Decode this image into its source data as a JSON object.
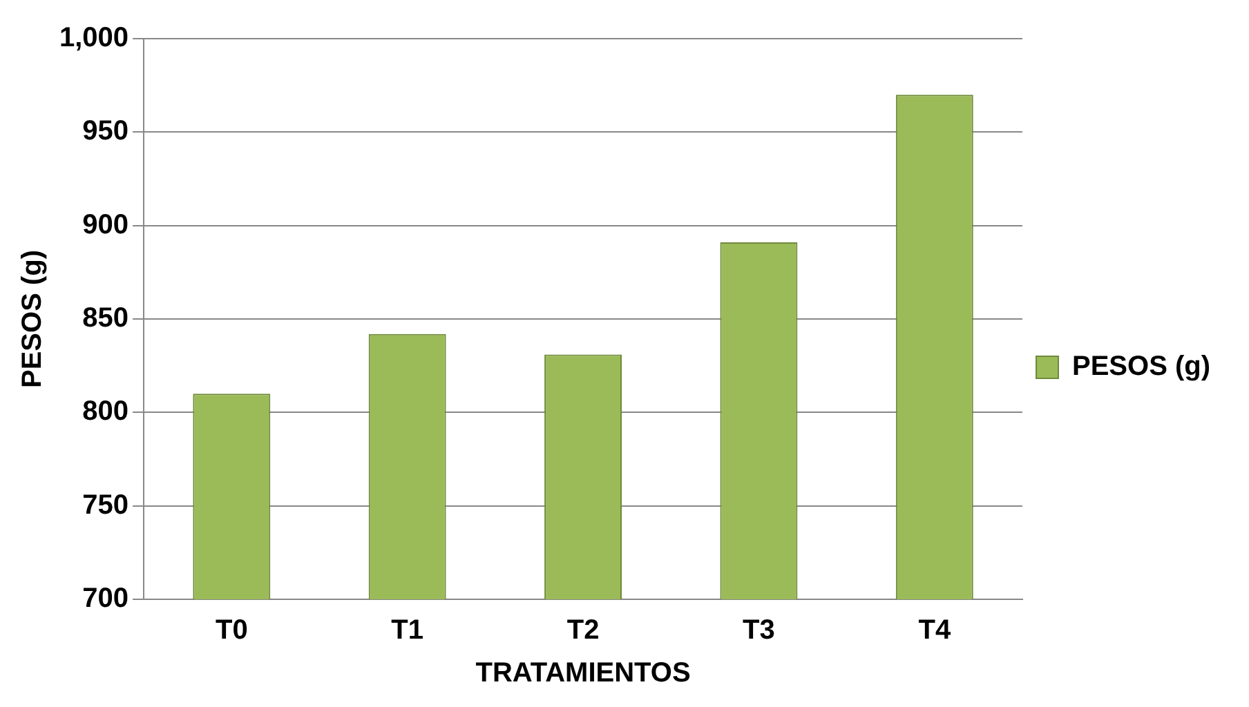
{
  "chart_data": {
    "type": "bar",
    "xlabel": "TRATAMIENTOS",
    "ylabel": "PESOS (g)",
    "categories": [
      "T0",
      "T1",
      "T2",
      "T3",
      "T4"
    ],
    "series": [
      {
        "name": "PESOS (g)",
        "color": "#9bbb59",
        "values": [
          810,
          842,
          831,
          891,
          970
        ]
      }
    ],
    "ylim": [
      700,
      1000
    ],
    "yticks": [
      700,
      750,
      800,
      850,
      900,
      950,
      {
        "value": 1000,
        "label": "1,000"
      }
    ],
    "grid": "y",
    "legend": "right"
  }
}
